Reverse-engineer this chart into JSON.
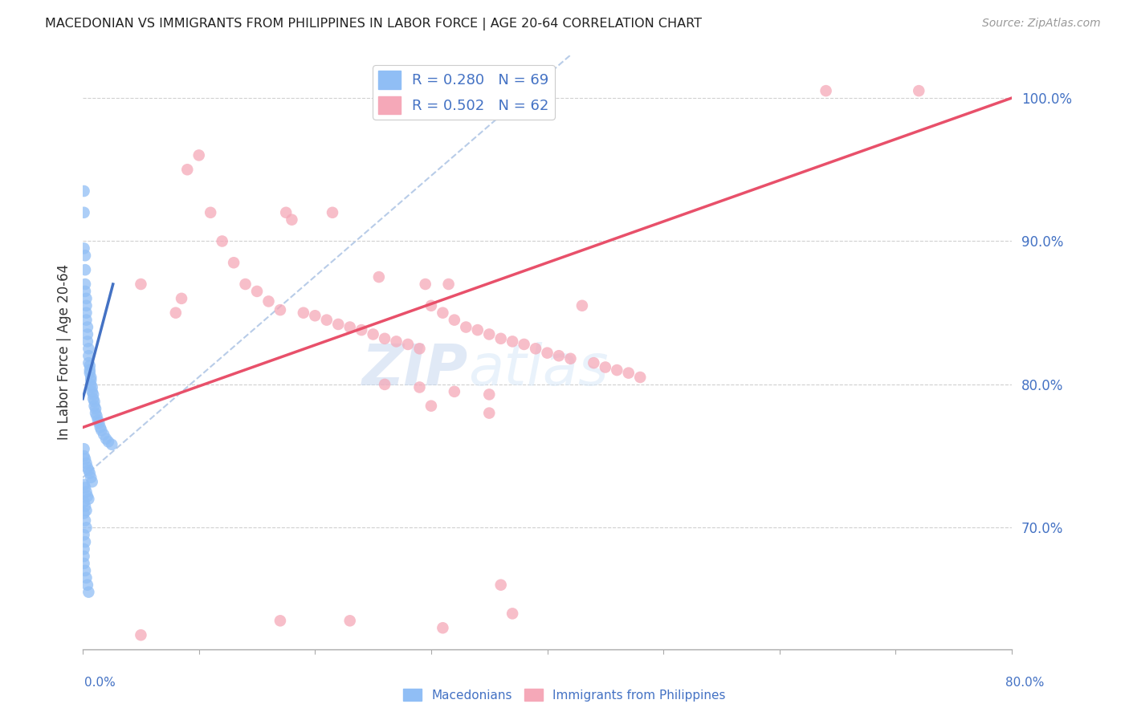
{
  "title": "MACEDONIAN VS IMMIGRANTS FROM PHILIPPINES IN LABOR FORCE | AGE 20-64 CORRELATION CHART",
  "source": "Source: ZipAtlas.com",
  "ylabel": "In Labor Force | Age 20-64",
  "ylabel_right_vals": [
    0.7,
    0.8,
    0.9,
    1.0
  ],
  "xmin": 0.0,
  "xmax": 0.8,
  "ymin": 0.615,
  "ymax": 1.03,
  "macedonian_color": "#90bef5",
  "philippines_color": "#f5a8b8",
  "macedonian_line_color": "#4472c4",
  "philippines_line_color": "#e8506a",
  "diagonal_color": "#b8cce8",
  "watermark_zip": "ZIP",
  "watermark_atlas": "atlas",
  "blue_color": "#4472c4",
  "mac_scatter_x": [
    0.001,
    0.001,
    0.001,
    0.002,
    0.002,
    0.002,
    0.002,
    0.003,
    0.003,
    0.003,
    0.003,
    0.004,
    0.004,
    0.004,
    0.005,
    0.005,
    0.005,
    0.006,
    0.006,
    0.006,
    0.007,
    0.007,
    0.007,
    0.008,
    0.008,
    0.009,
    0.009,
    0.01,
    0.01,
    0.011,
    0.011,
    0.012,
    0.013,
    0.014,
    0.015,
    0.016,
    0.018,
    0.02,
    0.022,
    0.025,
    0.001,
    0.001,
    0.002,
    0.003,
    0.004,
    0.005,
    0.006,
    0.007,
    0.008,
    0.001,
    0.002,
    0.003,
    0.004,
    0.005,
    0.001,
    0.002,
    0.003,
    0.001,
    0.002,
    0.003,
    0.001,
    0.002,
    0.001,
    0.001,
    0.001,
    0.002,
    0.003,
    0.004,
    0.005
  ],
  "mac_scatter_y": [
    0.935,
    0.92,
    0.895,
    0.89,
    0.88,
    0.87,
    0.865,
    0.86,
    0.855,
    0.85,
    0.845,
    0.84,
    0.835,
    0.83,
    0.825,
    0.82,
    0.815,
    0.813,
    0.81,
    0.808,
    0.805,
    0.803,
    0.8,
    0.798,
    0.795,
    0.793,
    0.79,
    0.788,
    0.785,
    0.783,
    0.78,
    0.778,
    0.775,
    0.773,
    0.77,
    0.768,
    0.765,
    0.762,
    0.76,
    0.758,
    0.755,
    0.75,
    0.748,
    0.745,
    0.742,
    0.74,
    0.738,
    0.735,
    0.732,
    0.73,
    0.728,
    0.725,
    0.722,
    0.72,
    0.718,
    0.715,
    0.712,
    0.71,
    0.705,
    0.7,
    0.695,
    0.69,
    0.685,
    0.68,
    0.675,
    0.67,
    0.665,
    0.66,
    0.655
  ],
  "phil_scatter_x": [
    0.05,
    0.08,
    0.085,
    0.09,
    0.1,
    0.11,
    0.12,
    0.13,
    0.14,
    0.15,
    0.16,
    0.17,
    0.175,
    0.18,
    0.19,
    0.2,
    0.21,
    0.215,
    0.22,
    0.23,
    0.24,
    0.25,
    0.255,
    0.26,
    0.27,
    0.28,
    0.29,
    0.295,
    0.3,
    0.31,
    0.315,
    0.32,
    0.33,
    0.34,
    0.35,
    0.36,
    0.37,
    0.38,
    0.39,
    0.4,
    0.41,
    0.42,
    0.43,
    0.44,
    0.45,
    0.46,
    0.47,
    0.48,
    0.26,
    0.29,
    0.32,
    0.35,
    0.3,
    0.35,
    0.64,
    0.72,
    0.17,
    0.31,
    0.36,
    0.05,
    0.23,
    0.37
  ],
  "phil_scatter_y": [
    0.87,
    0.85,
    0.86,
    0.95,
    0.96,
    0.92,
    0.9,
    0.885,
    0.87,
    0.865,
    0.858,
    0.852,
    0.92,
    0.915,
    0.85,
    0.848,
    0.845,
    0.92,
    0.842,
    0.84,
    0.838,
    0.835,
    0.875,
    0.832,
    0.83,
    0.828,
    0.825,
    0.87,
    0.855,
    0.85,
    0.87,
    0.845,
    0.84,
    0.838,
    0.835,
    0.832,
    0.83,
    0.828,
    0.825,
    0.822,
    0.82,
    0.818,
    0.855,
    0.815,
    0.812,
    0.81,
    0.808,
    0.805,
    0.8,
    0.798,
    0.795,
    0.793,
    0.785,
    0.78,
    1.005,
    1.005,
    0.635,
    0.63,
    0.66,
    0.625,
    0.635,
    0.64
  ],
  "mac_line_x": [
    0.0,
    0.026
  ],
  "mac_line_y": [
    0.79,
    0.87
  ],
  "phil_line_x": [
    0.0,
    0.8
  ],
  "phil_line_y": [
    0.77,
    1.0
  ],
  "diag_line_x": [
    0.0,
    0.42
  ],
  "diag_line_y": [
    0.735,
    1.03
  ]
}
